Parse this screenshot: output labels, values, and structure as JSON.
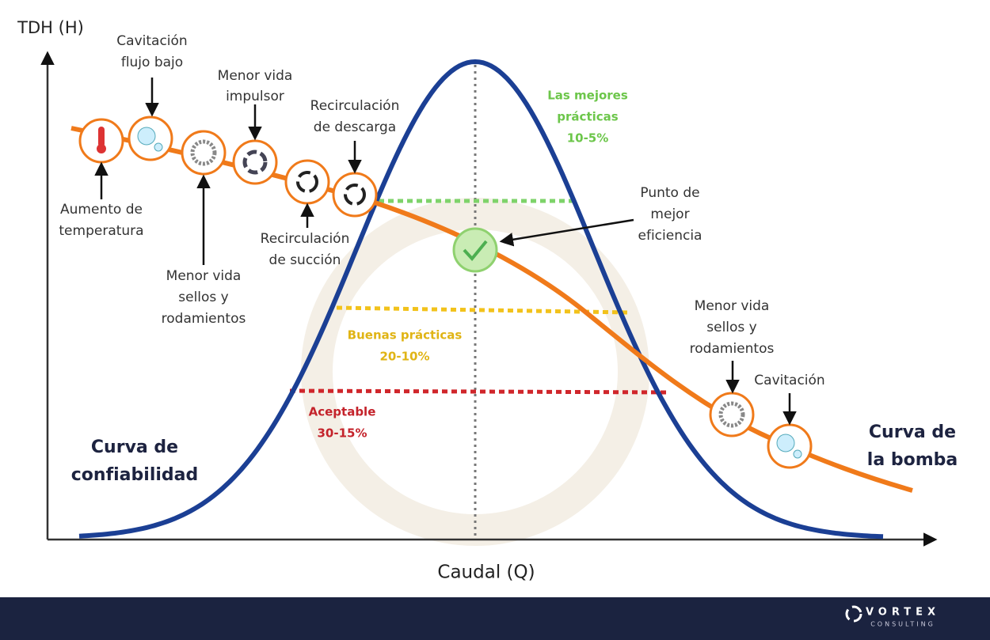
{
  "axes": {
    "y_label": "TDH (H)",
    "x_label": "Caudal (Q)"
  },
  "curves": {
    "reliability": [
      "Curva de",
      "confiabilidad"
    ],
    "pump": [
      "Curva de",
      "la bomba"
    ]
  },
  "zones": [
    {
      "title": [
        "Las mejores",
        "prácticas"
      ],
      "range": "10-5%"
    },
    {
      "title": [
        "Buenas prácticas"
      ],
      "range": "20-10%"
    },
    {
      "title": [
        "Aceptable"
      ],
      "range": "30-15%"
    }
  ],
  "annotations": {
    "low_flow_cavitation": [
      "Cavitación",
      "flujo bajo"
    ],
    "temperature": [
      "Aumento de",
      "temperatura"
    ],
    "seals_left": [
      "Menor vida",
      "sellos y",
      "rodamientos"
    ],
    "impeller": [
      "Menor vida",
      "impulsor"
    ],
    "suction": [
      "Recirculación",
      "de succión"
    ],
    "discharge": [
      "Recirculación",
      "de descarga"
    ],
    "bep": [
      "Punto de",
      "mejor",
      "eficiencia"
    ],
    "seals_right": [
      "Menor vida",
      "sellos y",
      "rodamientos"
    ],
    "cavitation": [
      "Cavitación"
    ]
  },
  "footer": {
    "brand": "VORTEX",
    "sub": "CONSULTING"
  }
}
